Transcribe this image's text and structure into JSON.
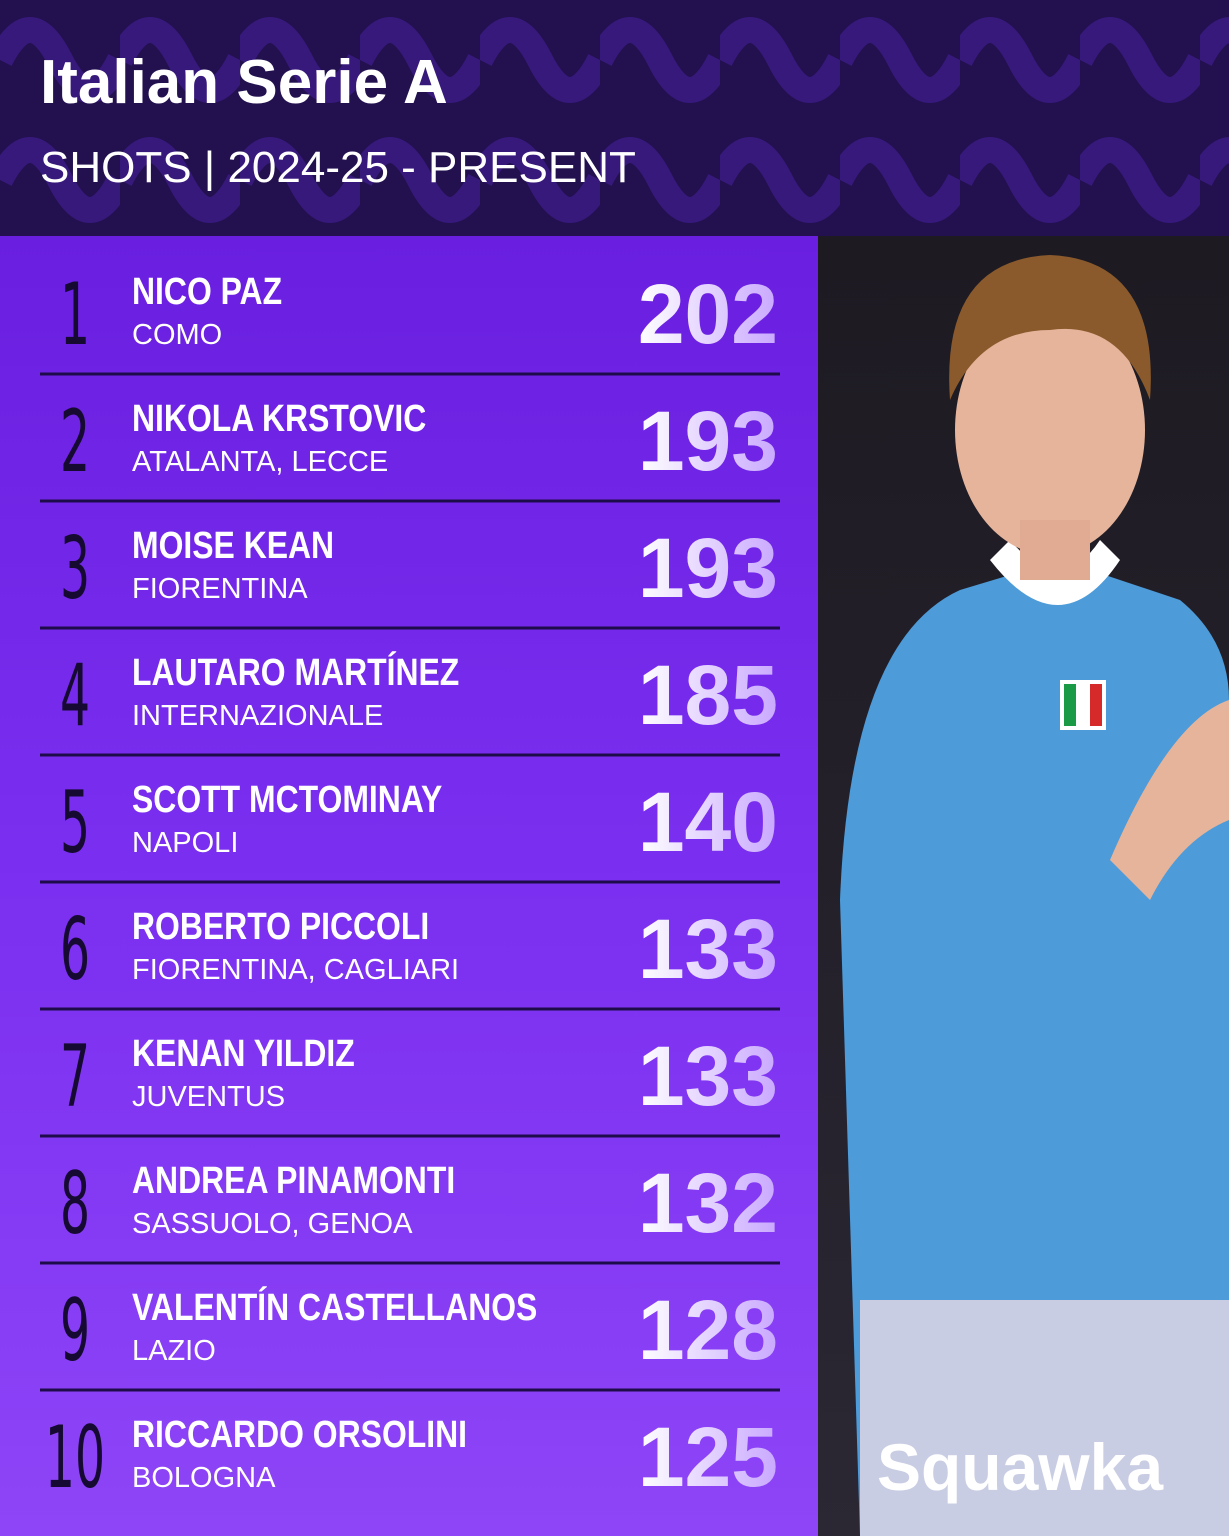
{
  "header": {
    "title": "Italian Serie A",
    "subtitle": "SHOTS | 2024-25 - PRESENT"
  },
  "rows": [
    {
      "rank": 1,
      "name": "NICO PAZ",
      "team": "COMO",
      "shots": 202
    },
    {
      "rank": 2,
      "name": "NIKOLA KRSTOVIC",
      "team": "ATALANTA, LECCE",
      "shots": 193
    },
    {
      "rank": 3,
      "name": "MOISE KEAN",
      "team": "FIORENTINA",
      "shots": 193
    },
    {
      "rank": 4,
      "name": "LAUTARO MARTÍNEZ",
      "team": "INTERNAZIONALE",
      "shots": 185
    },
    {
      "rank": 5,
      "name": "SCOTT MCTOMINAY",
      "team": "NAPOLI",
      "shots": 140
    },
    {
      "rank": 6,
      "name": "ROBERTO PICCOLI",
      "team": "FIORENTINA, CAGLIARI",
      "shots": 133
    },
    {
      "rank": 7,
      "name": "KENAN YILDIZ",
      "team": "JUVENTUS",
      "shots": 133
    },
    {
      "rank": 8,
      "name": "ANDREA PINAMONTI",
      "team": "SASSUOLO, GENOA",
      "shots": 132
    },
    {
      "rank": 9,
      "name": "VALENTÍN CASTELLANOS",
      "team": "LAZIO",
      "shots": 128
    },
    {
      "rank": 10,
      "name": "RICCARDO ORSOLINI",
      "team": "BOLOGNA",
      "shots": 125
    }
  ],
  "brand": "Squawka"
}
